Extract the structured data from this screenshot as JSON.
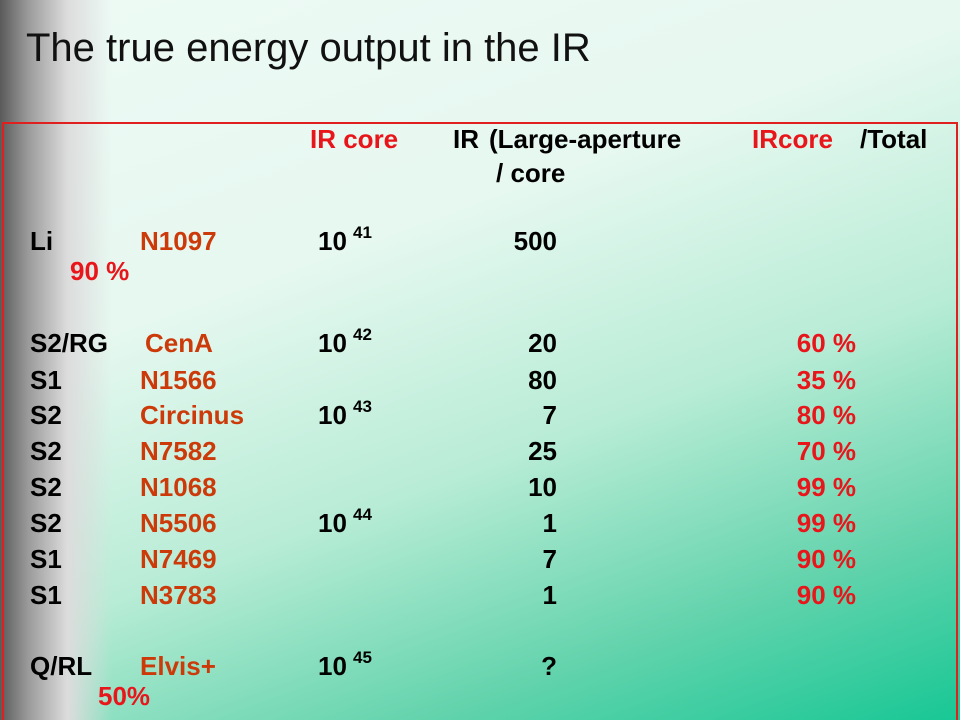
{
  "title": "The true energy output in the IR",
  "header": {
    "ir_core": "IR core",
    "ir": "IR",
    "large_aperture": "(Large-aperture",
    "per_core": "/ core",
    "ircore": "IRcore",
    "total": "/Total"
  },
  "rows": [
    {
      "type": "Li",
      "name": "N1097",
      "lum": {
        "base": "10",
        "exp": "41"
      },
      "ratio": "500",
      "fraction": "90 %"
    },
    {
      "type": "S2/RG",
      "name": "CenA",
      "lum": {
        "base": "10",
        "exp": "42"
      },
      "ratio": "20",
      "fraction": "60 %"
    },
    {
      "type": "S1",
      "name": "N1566",
      "ratio": "80",
      "fraction": "35 %"
    },
    {
      "type": "S2",
      "name": "Circinus",
      "lum": {
        "base": "10",
        "exp": "43"
      },
      "ratio": "7",
      "fraction": "80 %"
    },
    {
      "type": "S2",
      "name": "N7582",
      "ratio": "25",
      "fraction": "70 %"
    },
    {
      "type": "S2",
      "name": "N1068",
      "ratio": "10",
      "fraction": "99 %"
    },
    {
      "type": "S2",
      "name": "N5506",
      "lum": {
        "base": "10",
        "exp": "44"
      },
      "ratio": "1",
      "fraction": "99 %"
    },
    {
      "type": "S1",
      "name": "N7469",
      "ratio": "7",
      "fraction": "90 %"
    },
    {
      "type": "S1",
      "name": "N3783",
      "ratio": "1",
      "fraction": "90 %"
    },
    {
      "type": "Q/RL",
      "name": "Elvis+",
      "lum": {
        "base": "10",
        "exp": "45"
      },
      "ratio": "?",
      "fraction": "50%"
    }
  ]
}
